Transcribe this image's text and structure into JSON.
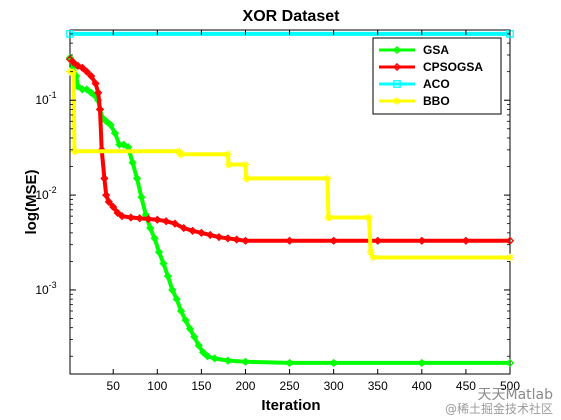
{
  "chart_data": {
    "type": "line",
    "title": "XOR Dataset",
    "xlabel": "Iteration",
    "ylabel": "log(MSE)",
    "xlim": [
      1,
      500
    ],
    "ylim": [
      0.00013,
      0.55
    ],
    "yscale": "log",
    "xticks": [
      50,
      100,
      150,
      200,
      250,
      300,
      350,
      400,
      450,
      500
    ],
    "yticks": [
      {
        "value": 0.1,
        "base": "10",
        "exp": "-1"
      },
      {
        "value": 0.01,
        "base": "10",
        "exp": "-2"
      },
      {
        "value": 0.001,
        "base": "10",
        "exp": "-3"
      }
    ],
    "grid": false,
    "legend_position": "top-right",
    "series": [
      {
        "name": "GSA",
        "color": "#00ff00",
        "marker": "diamond",
        "points": [
          [
            1,
            0.28
          ],
          [
            5,
            0.22
          ],
          [
            8,
            0.18
          ],
          [
            10,
            0.14
          ],
          [
            15,
            0.13
          ],
          [
            20,
            0.13
          ],
          [
            25,
            0.12
          ],
          [
            30,
            0.11
          ],
          [
            33,
            0.1
          ],
          [
            35,
            0.08
          ],
          [
            38,
            0.065
          ],
          [
            42,
            0.06
          ],
          [
            47,
            0.055
          ],
          [
            52,
            0.045
          ],
          [
            57,
            0.034
          ],
          [
            62,
            0.034
          ],
          [
            67,
            0.032
          ],
          [
            72,
            0.022
          ],
          [
            77,
            0.015
          ],
          [
            82,
            0.0095
          ],
          [
            87,
            0.0062
          ],
          [
            92,
            0.0045
          ],
          [
            97,
            0.0035
          ],
          [
            102,
            0.0025
          ],
          [
            107,
            0.0019
          ],
          [
            112,
            0.0014
          ],
          [
            117,
            0.001
          ],
          [
            122,
            0.0008
          ],
          [
            127,
            0.0006
          ],
          [
            132,
            0.00048
          ],
          [
            137,
            0.00039
          ],
          [
            142,
            0.00032
          ],
          [
            147,
            0.00026
          ],
          [
            152,
            0.00022
          ],
          [
            157,
            0.0002
          ],
          [
            165,
            0.00019
          ],
          [
            180,
            0.00018
          ],
          [
            200,
            0.000175
          ],
          [
            250,
            0.00017
          ],
          [
            300,
            0.00017
          ],
          [
            400,
            0.00017
          ],
          [
            500,
            0.00017
          ]
        ]
      },
      {
        "name": "CPSOGSA",
        "color": "#ff0000",
        "marker": "diamond",
        "points": [
          [
            1,
            0.27
          ],
          [
            5,
            0.25
          ],
          [
            10,
            0.23
          ],
          [
            15,
            0.22
          ],
          [
            20,
            0.2
          ],
          [
            25,
            0.18
          ],
          [
            30,
            0.15
          ],
          [
            33,
            0.12
          ],
          [
            35,
            0.08
          ],
          [
            37,
            0.03
          ],
          [
            40,
            0.015
          ],
          [
            42,
            0.01
          ],
          [
            45,
            0.0085
          ],
          [
            50,
            0.0075
          ],
          [
            55,
            0.0065
          ],
          [
            60,
            0.006
          ],
          [
            70,
            0.0058
          ],
          [
            80,
            0.0057
          ],
          [
            90,
            0.0056
          ],
          [
            100,
            0.0055
          ],
          [
            110,
            0.0053
          ],
          [
            120,
            0.005
          ],
          [
            130,
            0.0045
          ],
          [
            140,
            0.0042
          ],
          [
            150,
            0.004
          ],
          [
            160,
            0.0038
          ],
          [
            170,
            0.0036
          ],
          [
            180,
            0.0035
          ],
          [
            190,
            0.0034
          ],
          [
            200,
            0.0033
          ],
          [
            250,
            0.0033
          ],
          [
            300,
            0.0033
          ],
          [
            350,
            0.0033
          ],
          [
            400,
            0.0033
          ],
          [
            450,
            0.0033
          ],
          [
            500,
            0.0033
          ]
        ]
      },
      {
        "name": "ACO",
        "color": "#00ffff",
        "marker": "square",
        "points": [
          [
            1,
            0.5
          ],
          [
            500,
            0.5
          ]
        ]
      },
      {
        "name": "BBO",
        "color": "#ffff00",
        "marker": "star",
        "points": [
          [
            1,
            0.2
          ],
          [
            5,
            0.2
          ],
          [
            6,
            0.029
          ],
          [
            125,
            0.029
          ],
          [
            126,
            0.027
          ],
          [
            180,
            0.027
          ],
          [
            181,
            0.021
          ],
          [
            200,
            0.021
          ],
          [
            201,
            0.015
          ],
          [
            293,
            0.015
          ],
          [
            294,
            0.0058
          ],
          [
            340,
            0.0058
          ],
          [
            342,
            0.0025
          ],
          [
            345,
            0.0022
          ],
          [
            500,
            0.0022
          ]
        ]
      }
    ]
  },
  "watermark": {
    "main": "天天Matlab",
    "sub": "@稀土掘金技术社区"
  }
}
